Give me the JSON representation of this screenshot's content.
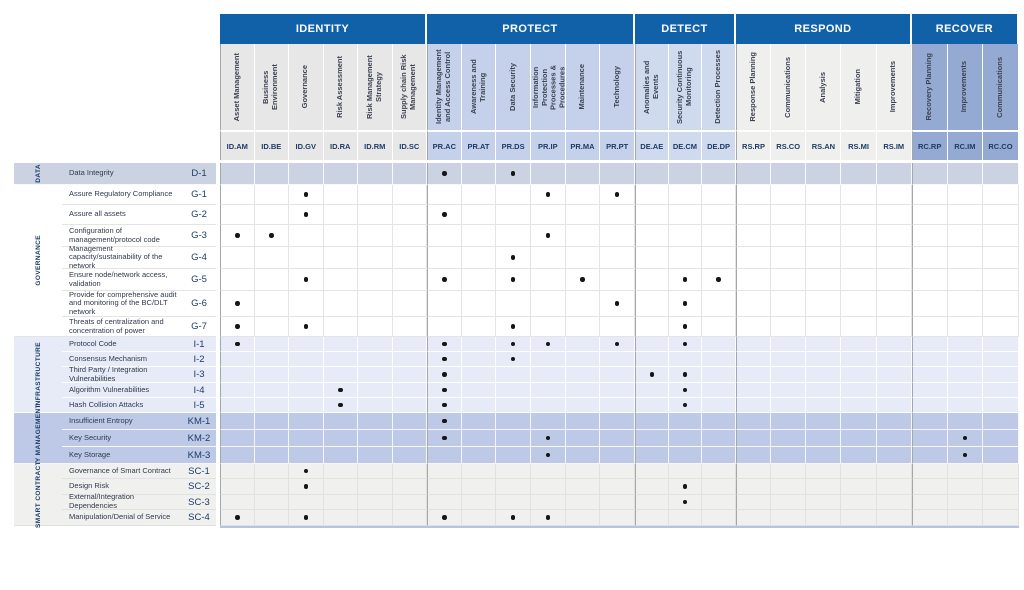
{
  "colors": {
    "header_blue": "#1161a9",
    "section_divider": "#a2a7ae",
    "dot": "#161616",
    "code_text": "#1d3b66",
    "bottom_strip": "#b6c4e0"
  },
  "sections": [
    {
      "name": "IDENTITY",
      "tint": "#e8e7e7",
      "columns": [
        {
          "label": "Asset Management",
          "code": "ID.AM"
        },
        {
          "label": "Business Environment",
          "code": "ID.BE"
        },
        {
          "label": "Governance",
          "code": "ID.GV"
        },
        {
          "label": "Risk Assessment",
          "code": "ID.RA"
        },
        {
          "label": "Risk Management Strategy",
          "code": "ID.RM"
        },
        {
          "label": "Supply chain Risk Management",
          "code": "ID.SC"
        }
      ]
    },
    {
      "name": "PROTECT",
      "tint": "#c5d1ea",
      "columns": [
        {
          "label": "Identity Management and Access Control",
          "code": "PR.AC"
        },
        {
          "label": "Awareness and Training",
          "code": "PR.AT"
        },
        {
          "label": "Data Security",
          "code": "PR.DS"
        },
        {
          "label": "Information Protection Processes & Procedures",
          "code": "PR.IP"
        },
        {
          "label": "Maintenance",
          "code": "PR.MA"
        },
        {
          "label": "Technology",
          "code": "PR.PT"
        }
      ]
    },
    {
      "name": "DETECT",
      "tint": "#d0daee",
      "columns": [
        {
          "label": "Anomalies and Events",
          "code": "DE.AE"
        },
        {
          "label": "Security Continuous Monitoring",
          "code": "DE.CM"
        },
        {
          "label": "Detection Processes",
          "code": "DE.DP"
        }
      ]
    },
    {
      "name": "RESPOND",
      "tint": "#efefee",
      "columns": [
        {
          "label": "Response Planning",
          "code": "RS.RP"
        },
        {
          "label": "Communications",
          "code": "RS.CO"
        },
        {
          "label": "Analysis",
          "code": "RS.AN"
        },
        {
          "label": "Mitigation",
          "code": "RS.MI"
        },
        {
          "label": "Improvements",
          "code": "RS.IM"
        }
      ]
    },
    {
      "name": "RECOVER",
      "tint": "#95aad2",
      "columns": [
        {
          "label": "Recovery Planning",
          "code": "RC.RP"
        },
        {
          "label": "Improvements",
          "code": "RC.IM"
        },
        {
          "label": "Communications",
          "code": "RC.CO"
        }
      ]
    }
  ],
  "groups": {
    "DATA": {
      "bg": "#cbd3e3",
      "line": "rgba(255,255,255,0.85)"
    },
    "GOVERNANCE": {
      "bg": "#ffffff",
      "line": "#e4e4e4"
    },
    "INFRASTRUCTURE": {
      "bg": "#e6ebf7",
      "line": "rgba(255,255,255,0.9)"
    },
    "KEY MANAGEMENT": {
      "bg": "#bdc9e6",
      "line": "rgba(255,255,255,0.85)"
    },
    "SMART CONTRACT": {
      "bg": "#f0f0ef",
      "line": "#e1e1e0"
    }
  },
  "rows": [
    {
      "group": "DATA",
      "label": "Data Integrity",
      "code": "D-1",
      "dots": [
        "PR.AC",
        "PR.DS"
      ]
    },
    {
      "group": "GOVERNANCE",
      "label": "Assure Regulatory Compliance",
      "code": "G-1",
      "dots": [
        "ID.GV",
        "PR.IP",
        "PR.PT"
      ]
    },
    {
      "group": "GOVERNANCE",
      "label": "Assure all assets",
      "code": "G-2",
      "dots": [
        "ID.GV",
        "PR.AC"
      ]
    },
    {
      "group": "GOVERNANCE",
      "label": "Configuration of management/protocol code",
      "code": "G-3",
      "dots": [
        "ID.AM",
        "ID.BE",
        "PR.IP"
      ]
    },
    {
      "group": "GOVERNANCE",
      "label": "Management capacity/sustainability of the network",
      "code": "G-4",
      "dots": [
        "PR.DS"
      ]
    },
    {
      "group": "GOVERNANCE",
      "label": "Ensure node/network access, validation",
      "code": "G-5",
      "dots": [
        "ID.GV",
        "PR.AC",
        "PR.DS",
        "PR.MA",
        "DE.CM",
        "DE.DP"
      ]
    },
    {
      "group": "GOVERNANCE",
      "label": "Provide for comprehensive audit and monitoring of the BC/DLT network",
      "code": "G-6",
      "dots": [
        "ID.AM",
        "PR.PT",
        "DE.CM"
      ]
    },
    {
      "group": "GOVERNANCE",
      "label": "Threats of centralization and concentration of power",
      "code": "G-7",
      "dots": [
        "ID.AM",
        "ID.GV",
        "PR.DS",
        "DE.CM"
      ]
    },
    {
      "group": "INFRASTRUCTURE",
      "label": "Protocol Code",
      "code": "I-1",
      "dots": [
        "ID.AM",
        "PR.AC",
        "PR.DS",
        "PR.IP",
        "PR.PT",
        "DE.CM"
      ]
    },
    {
      "group": "INFRASTRUCTURE",
      "label": "Consensus Mechanism",
      "code": "I-2",
      "dots": [
        "PR.AC",
        "PR.DS"
      ]
    },
    {
      "group": "INFRASTRUCTURE",
      "label": "Third Party / Integration Vulnerabilities",
      "code": "I-3",
      "dots": [
        "PR.AC",
        "DE.AE",
        "DE.CM"
      ]
    },
    {
      "group": "INFRASTRUCTURE",
      "label": "Algorithm Vulnerabilities",
      "code": "I-4",
      "dots": [
        "ID.RA",
        "PR.AC",
        "DE.CM"
      ]
    },
    {
      "group": "INFRASTRUCTURE",
      "label": "Hash Collision Attacks",
      "code": "I-5",
      "dots": [
        "ID.RA",
        "PR.AC",
        "DE.CM"
      ]
    },
    {
      "group": "KEY MANAGEMENT",
      "label": "Insufficient Entropy",
      "code": "KM-1",
      "dots": [
        "PR.AC"
      ]
    },
    {
      "group": "KEY MANAGEMENT",
      "label": "Key Security",
      "code": "KM-2",
      "dots": [
        "PR.AC",
        "PR.IP",
        "RC.IM"
      ]
    },
    {
      "group": "KEY MANAGEMENT",
      "label": "Key Storage",
      "code": "KM-3",
      "dots": [
        "PR.IP",
        "RC.IM"
      ]
    },
    {
      "group": "SMART CONTRACT",
      "label": "Governance of Smart Contract",
      "code": "SC-1",
      "dots": [
        "ID.GV"
      ]
    },
    {
      "group": "SMART CONTRACT",
      "label": "Design Risk",
      "code": "SC-2",
      "dots": [
        "ID.GV",
        "DE.CM"
      ]
    },
    {
      "group": "SMART CONTRACT",
      "label": "External/Integration Dependencies",
      "code": "SC-3",
      "dots": [
        "DE.CM"
      ]
    },
    {
      "group": "SMART CONTRACT",
      "label": "Manipulation/Denial of Service",
      "code": "SC-4",
      "dots": [
        "ID.AM",
        "ID.GV",
        "PR.AC",
        "PR.DS",
        "PR.IP"
      ]
    }
  ]
}
